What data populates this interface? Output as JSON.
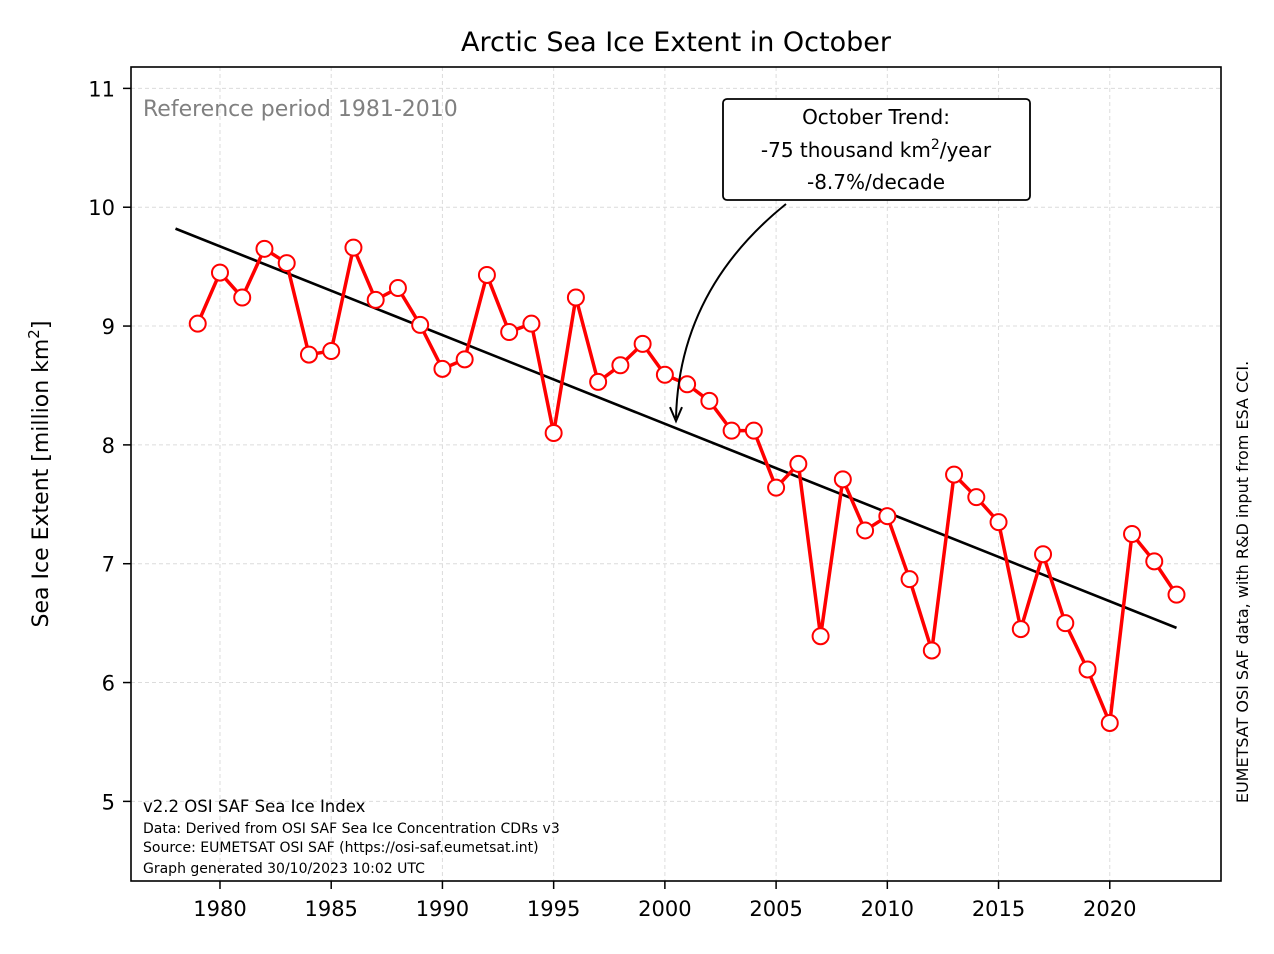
{
  "chart_data": {
    "type": "line",
    "title": "Arctic Sea Ice Extent in October",
    "ylabel": "Sea Ice Extent [million km²]",
    "xlabel": "",
    "xlim": [
      1976,
      2025
    ],
    "ylim": [
      4.33,
      11.18
    ],
    "x_ticks": [
      1980,
      1985,
      1990,
      1995,
      2000,
      2005,
      2010,
      2015,
      2020
    ],
    "y_ticks": [
      5,
      6,
      7,
      8,
      9,
      10,
      11
    ],
    "grid": true,
    "series": [
      {
        "color": "#ff0000",
        "marker": "open-circle",
        "x": [
          1979,
          1980,
          1981,
          1982,
          1983,
          1984,
          1985,
          1986,
          1987,
          1988,
          1989,
          1990,
          1991,
          1992,
          1993,
          1994,
          1995,
          1996,
          1997,
          1998,
          1999,
          2000,
          2001,
          2002,
          2003,
          2004,
          2005,
          2006,
          2007,
          2008,
          2009,
          2010,
          2011,
          2012,
          2013,
          2014,
          2015,
          2016,
          2017,
          2018,
          2019,
          2020,
          2021,
          2022,
          2023
        ],
        "values": [
          9.02,
          9.45,
          9.24,
          9.65,
          9.53,
          8.76,
          8.79,
          9.66,
          9.22,
          9.32,
          9.01,
          8.64,
          8.72,
          9.43,
          8.95,
          9.02,
          8.1,
          9.24,
          8.53,
          8.67,
          8.85,
          8.59,
          8.51,
          8.37,
          8.12,
          8.12,
          7.64,
          7.84,
          6.39,
          7.71,
          7.28,
          7.4,
          6.87,
          6.27,
          7.75,
          7.56,
          7.35,
          6.45,
          7.08,
          6.5,
          6.11,
          5.66,
          7.25,
          7.02,
          6.74
        ]
      }
    ],
    "trend": {
      "color": "#000000",
      "x": [
        1978,
        2023
      ],
      "values": [
        9.82,
        6.46
      ]
    },
    "annotation": {
      "line1": "October Trend:",
      "line2_prefix": "-75 thousand km",
      "line2_sup": "2",
      "line2_suffix": "/year",
      "line3": "-8.7%/decade",
      "arrow_target": {
        "x": 2000.5,
        "y": 8.2
      }
    },
    "reference_text": "Reference period 1981-2010",
    "footer": {
      "version": "v2.2 OSI SAF Sea Ice Index",
      "data_line": "Data: Derived from OSI SAF Sea Ice Concentration CDRs v3",
      "source_line": "Source: EUMETSAT OSI SAF (https://osi-saf.eumetsat.int)",
      "generated_line": "Graph generated 30/10/2023 10:02 UTC"
    },
    "side_credit": "EUMETSAT OSI SAF data, with R&D input from ESA CCI."
  }
}
